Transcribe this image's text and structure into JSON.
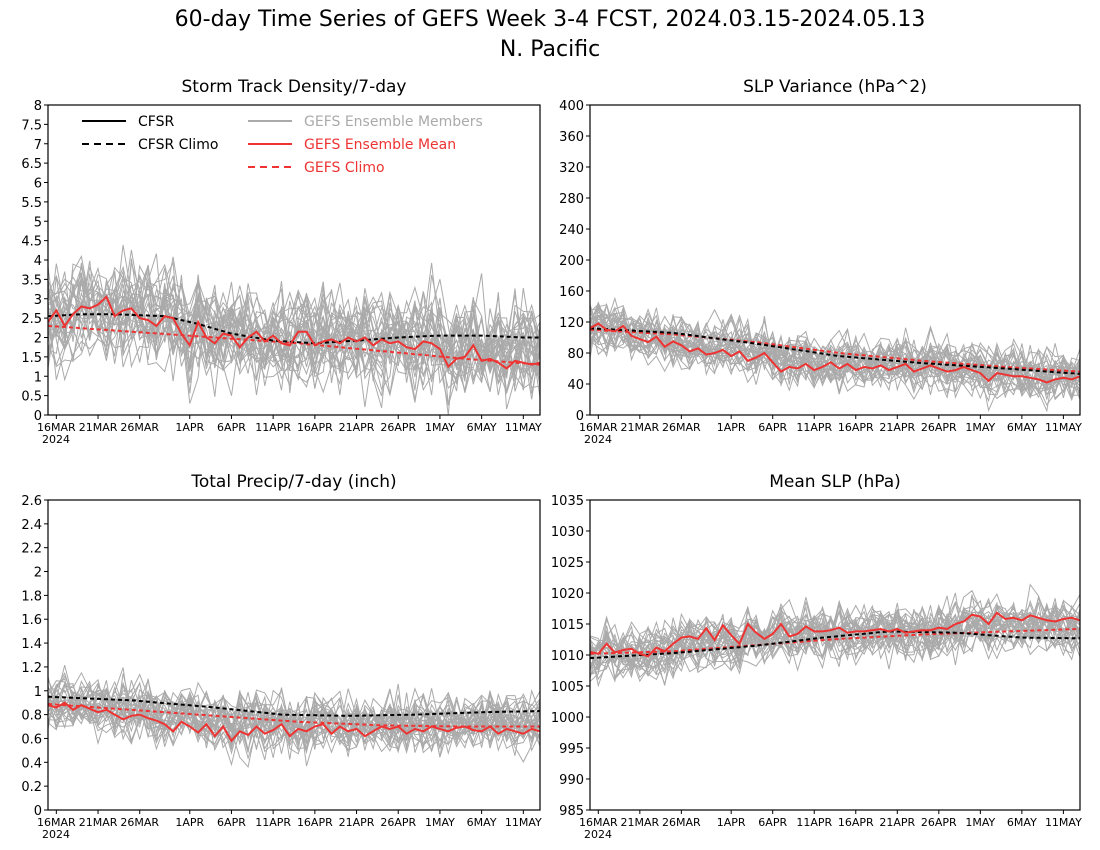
{
  "title_line1": "60-day Time Series of GEFS Week 3-4 FCST, 2024.03.15-2024.05.13",
  "title_line2": "N. Pacific",
  "colors": {
    "cfsr": "#000000",
    "members": "#aaaaaa",
    "gefs": "#ee3333",
    "legend_members_text": "#aaaaaa",
    "legend_gefs_text": "#ee3333"
  },
  "legend": {
    "cfsr": "CFSR",
    "cfsr_climo": "CFSR Climo",
    "members": "GEFS Ensemble Members",
    "gefs_mean": "GEFS Ensemble Mean",
    "gefs_climo": "GEFS Climo"
  },
  "x_ticks": [
    {
      "day": 1,
      "label": "16MAR"
    },
    {
      "day": 6,
      "label": "21MAR"
    },
    {
      "day": 11,
      "label": "26MAR"
    },
    {
      "day": 17,
      "label": "1APR"
    },
    {
      "day": 22,
      "label": "6APR"
    },
    {
      "day": 27,
      "label": "11APR"
    },
    {
      "day": 32,
      "label": "16APR"
    },
    {
      "day": 37,
      "label": "21APR"
    },
    {
      "day": 42,
      "label": "26APR"
    },
    {
      "day": 47,
      "label": "1MAY"
    },
    {
      "day": 52,
      "label": "6MAY"
    },
    {
      "day": 57,
      "label": "11MAY"
    }
  ],
  "x_year_label": "2024",
  "chart_data": [
    {
      "type": "line",
      "title": "Storm Track Density/7-day",
      "x_range": [
        "2024-03-15",
        "2024-05-13"
      ],
      "ylim": [
        0,
        8
      ],
      "y_ticks": [
        0,
        0.5,
        1,
        1.5,
        2,
        2.5,
        3,
        3.5,
        4,
        4.5,
        5,
        5.5,
        6,
        6.5,
        7,
        7.5,
        8
      ],
      "y_tick_labels": [
        "0",
        "0.5",
        "1",
        "1.5",
        "2",
        "2.5",
        "3",
        "3.5",
        "4",
        "4.5",
        "5",
        "5.5",
        "6",
        "6.5",
        "7",
        "7.5",
        "8"
      ],
      "show_legend": true,
      "members": {
        "count": 31,
        "spread": 0.75,
        "seed": 11
      },
      "series": [
        {
          "key": "cfsr_climo",
          "style": "dash-black",
          "points": [
            [
              0,
              2.55
            ],
            [
              4,
              2.6
            ],
            [
              8,
              2.6
            ],
            [
              14,
              2.55
            ],
            [
              18,
              2.35
            ],
            [
              22,
              2.1
            ],
            [
              27,
              1.92
            ],
            [
              32,
              1.85
            ],
            [
              37,
              1.92
            ],
            [
              42,
              2.0
            ],
            [
              47,
              2.05
            ],
            [
              52,
              2.05
            ],
            [
              57,
              2.0
            ],
            [
              59,
              2.0
            ]
          ]
        },
        {
          "key": "gefs_climo",
          "style": "dash-red",
          "points": [
            [
              0,
              2.3
            ],
            [
              10,
              2.15
            ],
            [
              20,
              2.0
            ],
            [
              30,
              1.85
            ],
            [
              40,
              1.65
            ],
            [
              50,
              1.45
            ],
            [
              59,
              1.3
            ]
          ]
        },
        {
          "key": "gefs_mean",
          "style": "solid-red",
          "values": [
            2.4,
            2.7,
            2.3,
            2.6,
            2.8,
            2.75,
            2.85,
            3.05,
            2.55,
            2.7,
            2.75,
            2.5,
            2.45,
            2.3,
            2.55,
            2.5,
            2.1,
            1.8,
            2.4,
            2.0,
            1.85,
            2.1,
            2.05,
            1.75,
            2.0,
            2.15,
            1.9,
            2.05,
            1.85,
            1.8,
            2.15,
            2.15,
            1.8,
            1.9,
            1.95,
            1.85,
            2.0,
            1.9,
            2.0,
            1.8,
            1.95,
            1.85,
            1.9,
            1.75,
            1.7,
            1.9,
            1.85,
            1.7,
            1.25,
            1.45,
            1.5,
            1.8,
            1.4,
            1.45,
            1.35,
            1.2,
            1.4,
            1.35,
            1.3,
            1.35
          ]
        }
      ]
    },
    {
      "type": "line",
      "title": "SLP Variance (hPa^2)",
      "x_range": [
        "2024-03-15",
        "2024-05-13"
      ],
      "ylim": [
        0,
        400
      ],
      "y_ticks": [
        0,
        40,
        80,
        120,
        160,
        200,
        240,
        280,
        320,
        360,
        400
      ],
      "y_tick_labels": [
        "0",
        "40",
        "80",
        "120",
        "160",
        "200",
        "240",
        "280",
        "320",
        "360",
        "400"
      ],
      "show_legend": false,
      "members": {
        "count": 31,
        "spread": 20,
        "seed": 23
      },
      "series": [
        {
          "key": "cfsr_climo",
          "style": "dash-black",
          "points": [
            [
              0,
              112
            ],
            [
              10,
              106
            ],
            [
              20,
              92
            ],
            [
              30,
              76
            ],
            [
              40,
              67
            ],
            [
              50,
              60
            ],
            [
              59,
              53
            ]
          ]
        },
        {
          "key": "gefs_climo",
          "style": "dash-red",
          "points": [
            [
              0,
              110
            ],
            [
              10,
              104
            ],
            [
              20,
              94
            ],
            [
              30,
              80
            ],
            [
              40,
              70
            ],
            [
              50,
              62
            ],
            [
              59,
              56
            ]
          ]
        },
        {
          "key": "gefs_mean",
          "style": "solid-red",
          "values": [
            112,
            118,
            110,
            108,
            115,
            102,
            98,
            94,
            101,
            88,
            95,
            90,
            82,
            86,
            78,
            80,
            84,
            76,
            82,
            70,
            74,
            80,
            68,
            56,
            62,
            60,
            66,
            58,
            62,
            68,
            60,
            66,
            58,
            62,
            60,
            64,
            58,
            62,
            66,
            56,
            60,
            64,
            60,
            56,
            58,
            62,
            58,
            54,
            44,
            54,
            52,
            50,
            50,
            48,
            46,
            42,
            46,
            48,
            46,
            50
          ]
        }
      ]
    },
    {
      "type": "line",
      "title": "Total Precip/7-day (inch)",
      "x_range": [
        "2024-03-15",
        "2024-05-13"
      ],
      "ylim": [
        0,
        2.6
      ],
      "y_ticks": [
        0,
        0.2,
        0.4,
        0.6,
        0.8,
        1,
        1.2,
        1.4,
        1.6,
        1.8,
        2,
        2.2,
        2.4,
        2.6
      ],
      "y_tick_labels": [
        "0",
        "0.2",
        "0.4",
        "0.6",
        "0.8",
        "1",
        "1.2",
        "1.4",
        "1.6",
        "1.8",
        "2",
        "2.2",
        "2.4",
        "2.6"
      ],
      "show_legend": false,
      "members": {
        "count": 31,
        "spread": 0.14,
        "seed": 37
      },
      "series": [
        {
          "key": "cfsr_climo",
          "style": "dash-black",
          "points": [
            [
              0,
              0.95
            ],
            [
              10,
              0.92
            ],
            [
              20,
              0.86
            ],
            [
              28,
              0.8
            ],
            [
              36,
              0.79
            ],
            [
              44,
              0.8
            ],
            [
              52,
              0.82
            ],
            [
              59,
              0.83
            ]
          ]
        },
        {
          "key": "gefs_climo",
          "style": "dash-red",
          "points": [
            [
              0,
              0.89
            ],
            [
              10,
              0.84
            ],
            [
              20,
              0.79
            ],
            [
              30,
              0.74
            ],
            [
              40,
              0.71
            ],
            [
              50,
              0.7
            ],
            [
              59,
              0.7
            ]
          ]
        },
        {
          "key": "gefs_mean",
          "style": "solid-red",
          "values": [
            0.88,
            0.86,
            0.9,
            0.84,
            0.88,
            0.85,
            0.82,
            0.84,
            0.8,
            0.76,
            0.79,
            0.8,
            0.77,
            0.75,
            0.72,
            0.66,
            0.74,
            0.7,
            0.65,
            0.72,
            0.62,
            0.7,
            0.58,
            0.66,
            0.63,
            0.7,
            0.64,
            0.67,
            0.72,
            0.62,
            0.68,
            0.66,
            0.7,
            0.72,
            0.64,
            0.7,
            0.66,
            0.68,
            0.62,
            0.66,
            0.7,
            0.68,
            0.7,
            0.64,
            0.68,
            0.66,
            0.7,
            0.68,
            0.66,
            0.69,
            0.7,
            0.67,
            0.66,
            0.7,
            0.64,
            0.68,
            0.66,
            0.64,
            0.68,
            0.66
          ]
        }
      ]
    },
    {
      "type": "line",
      "title": "Mean SLP (hPa)",
      "x_range": [
        "2024-03-15",
        "2024-05-13"
      ],
      "ylim": [
        985,
        1035
      ],
      "y_ticks": [
        985,
        990,
        995,
        1000,
        1005,
        1010,
        1015,
        1020,
        1025,
        1030,
        1035
      ],
      "y_tick_labels": [
        "985",
        "990",
        "995",
        "1000",
        "1005",
        "1010",
        "1015",
        "1020",
        "1025",
        "1030",
        "1035"
      ],
      "show_legend": false,
      "members": {
        "count": 31,
        "spread": 2.6,
        "seed": 53
      },
      "series": [
        {
          "key": "cfsr_climo",
          "style": "dash-black",
          "points": [
            [
              0,
              1009.5
            ],
            [
              10,
              1010.3
            ],
            [
              20,
              1011.5
            ],
            [
              28,
              1012.8
            ],
            [
              36,
              1013.8
            ],
            [
              44,
              1013.6
            ],
            [
              52,
              1012.8
            ],
            [
              59,
              1012.7
            ]
          ]
        },
        {
          "key": "gefs_climo",
          "style": "dash-red",
          "points": [
            [
              0,
              1010.2
            ],
            [
              10,
              1010.6
            ],
            [
              20,
              1011.6
            ],
            [
              30,
              1012.6
            ],
            [
              40,
              1013.3
            ],
            [
              50,
              1013.8
            ],
            [
              59,
              1014.2
            ]
          ]
        },
        {
          "key": "gefs_mean",
          "style": "solid-red",
          "values": [
            1010.5,
            1010.2,
            1011.8,
            1010.4,
            1010.8,
            1011.0,
            1010.2,
            1009.8,
            1011.2,
            1010.6,
            1011.8,
            1012.8,
            1013.0,
            1012.6,
            1014.3,
            1012.4,
            1014.8,
            1013.2,
            1011.8,
            1015.0,
            1013.6,
            1012.6,
            1013.4,
            1015.0,
            1013.0,
            1013.4,
            1014.6,
            1013.8,
            1013.8,
            1014.0,
            1014.4,
            1013.6,
            1013.8,
            1013.8,
            1014.0,
            1014.2,
            1013.8,
            1014.2,
            1013.6,
            1013.8,
            1014.0,
            1014.0,
            1014.4,
            1014.2,
            1015.0,
            1015.4,
            1016.5,
            1016.2,
            1015.0,
            1016.8,
            1015.8,
            1016.0,
            1015.6,
            1016.4,
            1016.0,
            1015.6,
            1015.4,
            1015.8,
            1016.0,
            1015.6
          ]
        }
      ]
    }
  ]
}
